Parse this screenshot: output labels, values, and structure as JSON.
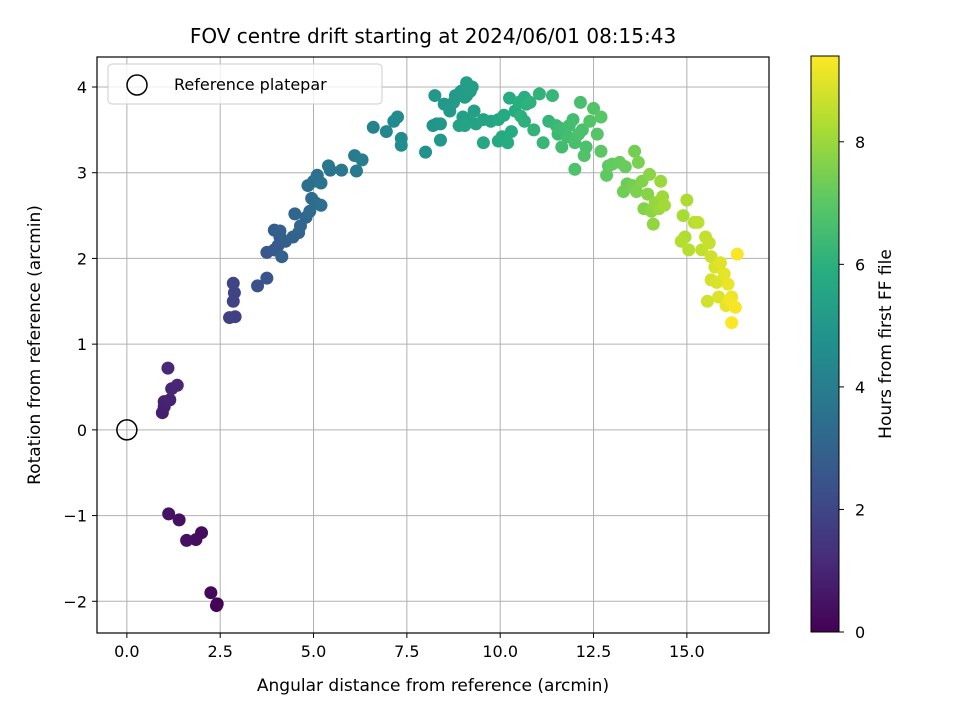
{
  "chart_data": {
    "type": "scatter",
    "title": "FOV centre drift starting at 2024/06/01 08:15:43",
    "xlabel": "Angular distance from reference (arcmin)",
    "ylabel": "Rotation from reference (arcmin)",
    "xlim": [
      -0.8,
      17.2
    ],
    "ylim": [
      -2.37,
      4.35
    ],
    "xticks": [
      0.0,
      2.5,
      5.0,
      7.5,
      10.0,
      12.5,
      15.0
    ],
    "xtick_labels": [
      "0.0",
      "2.5",
      "5.0",
      "7.5",
      "10.0",
      "12.5",
      "15.0"
    ],
    "yticks": [
      -2,
      -1,
      0,
      1,
      2,
      3,
      4
    ],
    "ytick_labels": [
      "−2",
      "−1",
      "0",
      "1",
      "2",
      "3",
      "4"
    ],
    "grid": true,
    "legend": {
      "placement": "top-left",
      "entries": [
        "Reference platepar"
      ]
    },
    "colorbar": {
      "label": "Hours from first FF file",
      "range": [
        0,
        9.4
      ],
      "ticks": [
        0,
        2,
        4,
        6,
        8
      ],
      "tick_labels": [
        "0",
        "2",
        "4",
        "6",
        "8"
      ],
      "colormap": "viridis"
    },
    "reference_point": {
      "x": 0,
      "y": 0
    },
    "points": [
      [
        2.4,
        -2.05,
        0.05
      ],
      [
        2.42,
        -2.03,
        0.1
      ],
      [
        2.25,
        -1.9,
        0.2
      ],
      [
        2.0,
        -1.2,
        0.3
      ],
      [
        1.85,
        -1.28,
        0.35
      ],
      [
        1.6,
        -1.29,
        0.4
      ],
      [
        1.4,
        -1.05,
        0.45
      ],
      [
        1.12,
        -0.98,
        0.5
      ],
      [
        0.95,
        0.2,
        0.8
      ],
      [
        1.0,
        0.27,
        0.85
      ],
      [
        1.0,
        0.33,
        0.9
      ],
      [
        1.15,
        0.35,
        0.95
      ],
      [
        1.2,
        0.48,
        1.0
      ],
      [
        1.35,
        0.52,
        1.05
      ],
      [
        1.1,
        0.72,
        1.1
      ],
      [
        2.75,
        1.31,
        1.8
      ],
      [
        2.9,
        1.32,
        1.85
      ],
      [
        2.85,
        1.5,
        1.9
      ],
      [
        2.88,
        1.6,
        1.95
      ],
      [
        2.85,
        1.71,
        2.0
      ],
      [
        3.5,
        1.68,
        2.4
      ],
      [
        3.75,
        1.77,
        2.5
      ],
      [
        3.75,
        2.07,
        2.6
      ],
      [
        3.95,
        2.1,
        2.65
      ],
      [
        4.05,
        2.15,
        2.7
      ],
      [
        4.1,
        2.25,
        2.75
      ],
      [
        3.95,
        2.33,
        2.8
      ],
      [
        4.1,
        2.32,
        2.85
      ],
      [
        4.25,
        2.2,
        2.9
      ],
      [
        4.15,
        2.02,
        2.95
      ],
      [
        4.45,
        2.25,
        3.0
      ],
      [
        4.6,
        2.3,
        3.05
      ],
      [
        4.5,
        2.52,
        3.1
      ],
      [
        4.65,
        2.38,
        3.15
      ],
      [
        4.8,
        2.48,
        3.2
      ],
      [
        4.9,
        2.55,
        3.25
      ],
      [
        4.95,
        2.7,
        3.3
      ],
      [
        5.05,
        2.65,
        3.35
      ],
      [
        5.2,
        2.62,
        3.4
      ],
      [
        4.85,
        2.85,
        3.45
      ],
      [
        5.0,
        2.9,
        3.5
      ],
      [
        5.1,
        2.97,
        3.55
      ],
      [
        5.2,
        2.88,
        3.6
      ],
      [
        5.45,
        3.03,
        3.65
      ],
      [
        5.4,
        3.08,
        3.7
      ],
      [
        5.75,
        3.03,
        3.8
      ],
      [
        6.15,
        3.02,
        3.9
      ],
      [
        6.1,
        3.2,
        3.95
      ],
      [
        6.3,
        3.15,
        4.0
      ],
      [
        6.6,
        3.53,
        4.2
      ],
      [
        6.95,
        3.48,
        4.35
      ],
      [
        7.15,
        3.6,
        4.45
      ],
      [
        7.25,
        3.65,
        4.5
      ],
      [
        7.35,
        3.4,
        4.55
      ],
      [
        7.35,
        3.32,
        4.6
      ],
      [
        8.0,
        3.24,
        4.8
      ],
      [
        8.2,
        3.55,
        4.85
      ],
      [
        8.3,
        3.57,
        4.9
      ],
      [
        8.4,
        3.57,
        4.95
      ],
      [
        8.25,
        3.9,
        5.0
      ],
      [
        8.4,
        3.38,
        5.0
      ],
      [
        8.5,
        3.8,
        5.05
      ],
      [
        8.65,
        3.72,
        5.1
      ],
      [
        8.8,
        3.9,
        5.1
      ],
      [
        8.75,
        3.82,
        5.15
      ],
      [
        8.95,
        3.95,
        5.15
      ],
      [
        9.05,
        3.88,
        5.2
      ],
      [
        9.1,
        3.9,
        5.2
      ],
      [
        9.2,
        3.95,
        5.25
      ],
      [
        9.25,
        4.0,
        5.25
      ],
      [
        9.1,
        4.05,
        5.3
      ],
      [
        9.0,
        3.65,
        5.3
      ],
      [
        9.15,
        3.6,
        5.35
      ],
      [
        9.3,
        3.72,
        5.35
      ],
      [
        9.35,
        3.57,
        5.4
      ],
      [
        8.9,
        3.55,
        5.4
      ],
      [
        9.05,
        3.55,
        5.45
      ],
      [
        9.55,
        3.62,
        5.5
      ],
      [
        9.75,
        3.6,
        5.55
      ],
      [
        9.55,
        3.35,
        5.6
      ],
      [
        9.95,
        3.62,
        5.65
      ],
      [
        9.95,
        3.37,
        5.7
      ],
      [
        10.05,
        3.42,
        5.75
      ],
      [
        10.1,
        3.67,
        5.75
      ],
      [
        10.25,
        3.87,
        5.8
      ],
      [
        10.3,
        3.48,
        5.8
      ],
      [
        10.2,
        3.35,
        5.85
      ],
      [
        10.4,
        3.72,
        5.85
      ],
      [
        10.5,
        3.82,
        5.9
      ],
      [
        10.65,
        3.88,
        5.9
      ],
      [
        10.7,
        3.8,
        5.95
      ],
      [
        10.55,
        3.66,
        6.0
      ],
      [
        10.65,
        3.6,
        6.0
      ],
      [
        10.8,
        3.82,
        6.05
      ],
      [
        11.05,
        3.92,
        6.1
      ],
      [
        10.9,
        3.5,
        6.15
      ],
      [
        11.3,
        3.6,
        6.2
      ],
      [
        11.15,
        3.35,
        6.25
      ],
      [
        11.4,
        3.9,
        6.25
      ],
      [
        11.5,
        3.55,
        6.3
      ],
      [
        11.55,
        3.45,
        6.35
      ],
      [
        11.6,
        3.52,
        6.4
      ],
      [
        11.7,
        3.5,
        6.45
      ],
      [
        11.65,
        3.3,
        6.5
      ],
      [
        11.85,
        3.55,
        6.5
      ],
      [
        11.95,
        3.62,
        6.55
      ],
      [
        11.8,
        3.42,
        6.55
      ],
      [
        12.0,
        3.35,
        6.6
      ],
      [
        12.15,
        3.82,
        6.6
      ],
      [
        12.2,
        3.5,
        6.65
      ],
      [
        12.3,
        3.3,
        6.7
      ],
      [
        12.1,
        3.45,
        6.7
      ],
      [
        12.0,
        3.04,
        6.75
      ],
      [
        12.25,
        3.2,
        6.8
      ],
      [
        12.4,
        3.6,
        6.85
      ],
      [
        12.5,
        3.75,
        6.85
      ],
      [
        12.6,
        3.45,
        6.9
      ],
      [
        12.7,
        3.65,
        6.95
      ],
      [
        12.7,
        3.25,
        7.0
      ],
      [
        12.9,
        3.08,
        7.05
      ],
      [
        12.85,
        2.97,
        7.1
      ],
      [
        13.0,
        3.1,
        7.15
      ],
      [
        13.2,
        3.12,
        7.2
      ],
      [
        13.35,
        3.07,
        7.25
      ],
      [
        13.4,
        2.87,
        7.3
      ],
      [
        13.3,
        2.78,
        7.35
      ],
      [
        13.6,
        3.25,
        7.4
      ],
      [
        13.55,
        2.85,
        7.45
      ],
      [
        13.7,
        3.12,
        7.5
      ],
      [
        13.65,
        2.78,
        7.55
      ],
      [
        13.8,
        2.9,
        7.6
      ],
      [
        13.85,
        2.58,
        7.65
      ],
      [
        13.95,
        2.75,
        7.7
      ],
      [
        14.0,
        2.98,
        7.75
      ],
      [
        14.05,
        2.55,
        7.8
      ],
      [
        14.1,
        2.4,
        7.85
      ],
      [
        14.15,
        2.65,
        7.9
      ],
      [
        14.25,
        2.58,
        7.95
      ],
      [
        14.3,
        2.9,
        8.0
      ],
      [
        14.35,
        2.72,
        8.05
      ],
      [
        14.4,
        2.62,
        8.1
      ],
      [
        14.9,
        2.5,
        8.2
      ],
      [
        15.0,
        2.68,
        8.25
      ],
      [
        14.95,
        2.25,
        8.3
      ],
      [
        14.85,
        2.2,
        8.35
      ],
      [
        15.05,
        2.1,
        8.4
      ],
      [
        15.2,
        2.42,
        8.45
      ],
      [
        15.3,
        2.42,
        8.5
      ],
      [
        15.4,
        2.1,
        8.55
      ],
      [
        15.5,
        2.25,
        8.6
      ],
      [
        15.6,
        2.18,
        8.65
      ],
      [
        15.65,
        2.02,
        8.7
      ],
      [
        15.55,
        1.5,
        8.75
      ],
      [
        15.65,
        1.75,
        8.8
      ],
      [
        15.75,
        1.9,
        8.85
      ],
      [
        15.8,
        1.72,
        8.9
      ],
      [
        15.85,
        1.55,
        8.95
      ],
      [
        15.9,
        1.95,
        9.0
      ],
      [
        16.0,
        1.82,
        9.05
      ],
      [
        16.05,
        1.45,
        9.1
      ],
      [
        16.1,
        1.7,
        9.15
      ],
      [
        16.2,
        1.55,
        9.2
      ],
      [
        16.15,
        1.52,
        9.25
      ],
      [
        16.3,
        1.43,
        9.3
      ],
      [
        16.35,
        2.05,
        9.35
      ],
      [
        16.2,
        1.25,
        9.4
      ]
    ]
  }
}
